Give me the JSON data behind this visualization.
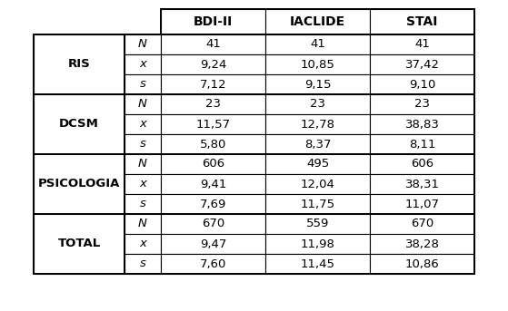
{
  "headers": [
    "BDI-II",
    "IACLIDE",
    "STAI"
  ],
  "row_groups": [
    {
      "label": "RIS",
      "rows": [
        {
          "stat": "N",
          "values": [
            "41",
            "41",
            "41"
          ]
        },
        {
          "stat": "x",
          "values": [
            "9,24",
            "10,85",
            "37,42"
          ]
        },
        {
          "stat": "s",
          "values": [
            "7,12",
            "9,15",
            "9,10"
          ]
        }
      ]
    },
    {
      "label": "DCSM",
      "rows": [
        {
          "stat": "N",
          "values": [
            "23",
            "23",
            "23"
          ]
        },
        {
          "stat": "x",
          "values": [
            "11,57",
            "12,78",
            "38,83"
          ]
        },
        {
          "stat": "s",
          "values": [
            "5,80",
            "8,37",
            "8,11"
          ]
        }
      ]
    },
    {
      "label": "PSICOLOGIA",
      "rows": [
        {
          "stat": "N",
          "values": [
            "606",
            "495",
            "606"
          ]
        },
        {
          "stat": "x",
          "values": [
            "9,41",
            "12,04",
            "38,31"
          ]
        },
        {
          "stat": "s",
          "values": [
            "7,69",
            "11,75",
            "11,07"
          ]
        }
      ]
    },
    {
      "label": "TOTAL",
      "rows": [
        {
          "stat": "N",
          "values": [
            "670",
            "559",
            "670"
          ]
        },
        {
          "stat": "x",
          "values": [
            "9,47",
            "11,98",
            "38,28"
          ]
        },
        {
          "stat": "s",
          "values": [
            "7,60",
            "11,45",
            "10,86"
          ]
        }
      ]
    }
  ],
  "bg_color": "#ffffff",
  "border_color": "#000000",
  "text_color": "#000000",
  "header_fontsize": 10,
  "body_fontsize": 9.5,
  "lw_inner": 0.8,
  "lw_outer": 1.4,
  "lw_group": 1.4
}
